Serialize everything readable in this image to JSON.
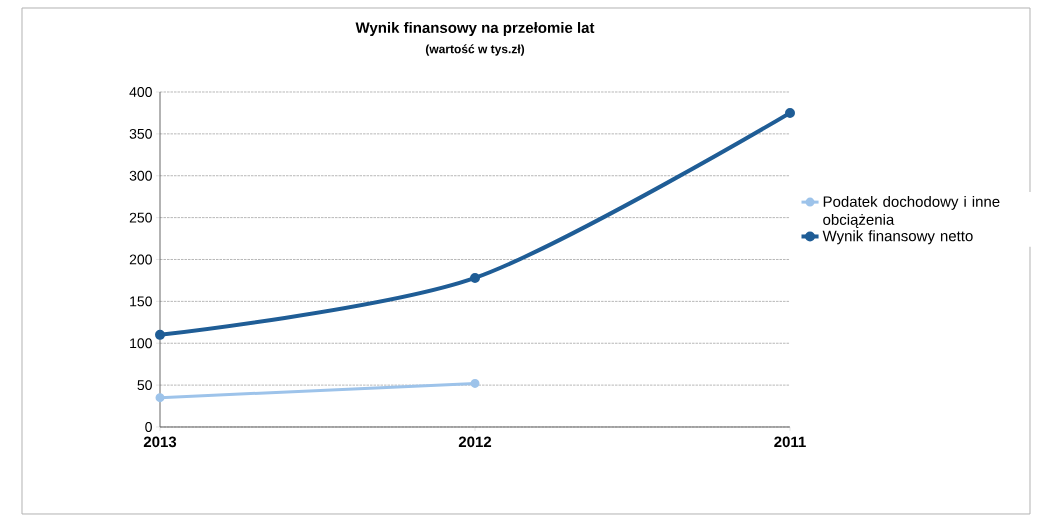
{
  "chart_data": {
    "type": "line",
    "title": "Wynik finansowy na przełomie lat",
    "subtitle": "(wartość w tys.zł)",
    "categories": [
      "2013",
      "2012",
      "2011"
    ],
    "series": [
      {
        "name": "Podatek dochodowy i inne obciążenia",
        "color": "#9dc3ea",
        "values": [
          35,
          52,
          null
        ]
      },
      {
        "name": "Wynik finansowy netto",
        "color": "#1f5d96",
        "values": [
          110,
          178,
          375
        ]
      }
    ],
    "ylim": [
      0,
      400
    ],
    "yticks": [
      0,
      50,
      100,
      150,
      200,
      250,
      300,
      350,
      400
    ],
    "grid": "y",
    "legend": "right",
    "marker": "circle",
    "line_style": "solid"
  }
}
